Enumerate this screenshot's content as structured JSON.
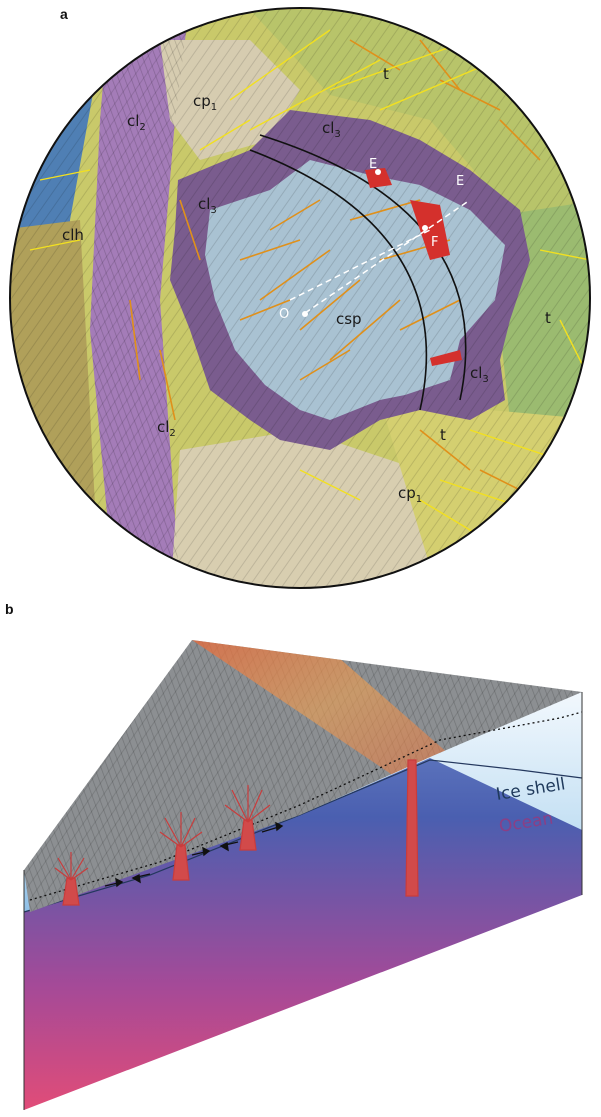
{
  "panel_a": {
    "letter": "a",
    "units": {
      "t_top": "t",
      "cp1_top_base": "cp",
      "cp1_top_sub": "1",
      "cl2_upper_base": "cl",
      "cl2_upper_sub": "2",
      "cl3_top_base": "cl",
      "cl3_top_sub": "3",
      "cl3_left_base": "cl",
      "cl3_left_sub": "3",
      "clh": "clh",
      "csp": "csp",
      "t_right": "t",
      "cl3_right_base": "cl",
      "cl3_right_sub": "3",
      "cl2_lower_base": "cl",
      "cl2_lower_sub": "2",
      "t_bottom": "t",
      "cp1_bottom_base": "cp",
      "cp1_bottom_sub": "1"
    },
    "points": {
      "E_upper": "E",
      "E_right": "E",
      "F": "F",
      "O": "O"
    }
  },
  "panel_b": {
    "letter": "b",
    "labels": {
      "ice_shell": "Ice shell",
      "ocean": "Ocean"
    },
    "colors": {
      "ice_shell": "#203a5c",
      "ocean": "#8a3f86"
    }
  }
}
